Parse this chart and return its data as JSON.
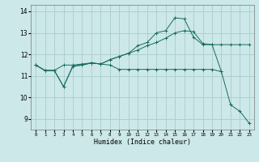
{
  "xlabel": "Humidex (Indice chaleur)",
  "bg_color": "#cce8e8",
  "grid_color": "#aacccc",
  "line_color": "#1a6b60",
  "xlim": [
    -0.5,
    23.5
  ],
  "ylim": [
    8.5,
    14.3
  ],
  "xticks": [
    0,
    1,
    2,
    3,
    4,
    5,
    6,
    7,
    8,
    9,
    10,
    11,
    12,
    13,
    14,
    15,
    16,
    17,
    18,
    19,
    20,
    21,
    22,
    23
  ],
  "yticks": [
    9,
    10,
    11,
    12,
    13,
    14
  ],
  "line1_x": [
    0,
    1,
    2,
    3,
    4,
    5,
    6,
    7,
    8,
    9,
    10,
    11,
    12,
    13,
    14,
    15,
    16,
    17,
    18,
    19,
    20
  ],
  "line1_y": [
    11.5,
    11.25,
    11.25,
    11.5,
    11.5,
    11.55,
    11.6,
    11.55,
    11.5,
    11.3,
    11.3,
    11.3,
    11.3,
    11.3,
    11.3,
    11.3,
    11.3,
    11.3,
    11.3,
    11.3,
    11.2
  ],
  "line2_x": [
    0,
    1,
    2,
    3,
    4,
    5,
    6,
    7,
    8,
    9,
    10,
    11,
    12,
    13,
    14,
    15,
    16,
    17,
    18,
    19,
    20,
    21,
    22,
    23
  ],
  "line2_y": [
    11.5,
    11.25,
    11.25,
    10.5,
    11.45,
    11.5,
    11.6,
    11.55,
    11.75,
    11.9,
    12.05,
    12.2,
    12.4,
    12.55,
    12.75,
    13.0,
    13.1,
    13.05,
    12.5,
    12.45,
    12.45,
    12.45,
    12.45,
    12.45
  ],
  "line3_x": [
    0,
    1,
    2,
    3,
    4,
    5,
    6,
    7,
    8,
    9,
    10,
    11,
    12,
    13,
    14,
    15,
    16,
    17,
    18,
    19,
    20,
    21,
    22,
    23
  ],
  "line3_y": [
    11.5,
    11.25,
    11.25,
    10.5,
    11.45,
    11.5,
    11.6,
    11.55,
    11.75,
    11.9,
    12.05,
    12.4,
    12.55,
    13.0,
    13.1,
    13.7,
    13.65,
    12.8,
    12.45,
    12.45,
    11.2,
    9.65,
    9.35,
    8.8
  ]
}
